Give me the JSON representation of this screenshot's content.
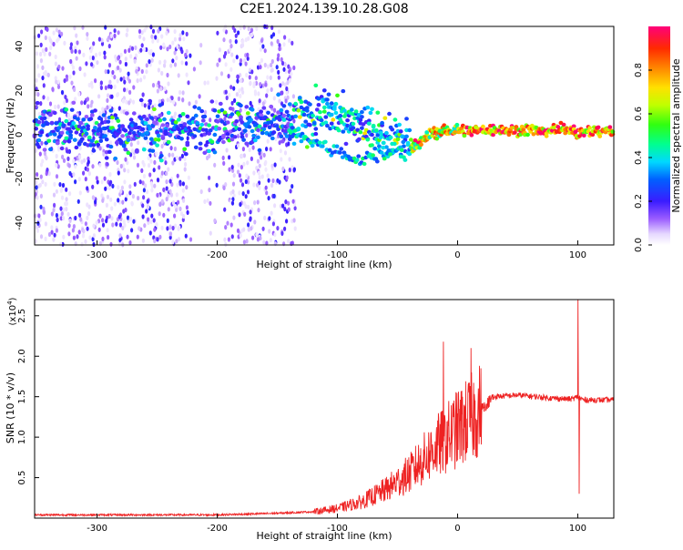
{
  "title": "C2E1.2024.139.10.28.G08",
  "chart_data": [
    {
      "type": "heatmap",
      "xlabel": "Height of straight line (km)",
      "ylabel": "Frequency (Hz)",
      "xlim": [
        -352,
        130
      ],
      "ylim": [
        -50,
        49
      ],
      "x_ticks": [
        -300,
        -200,
        -100,
        0,
        100
      ],
      "y_ticks": [
        -40,
        -20,
        0,
        20,
        40
      ],
      "colorbar": {
        "label": "Normalized spectral amplitude",
        "range": [
          0.0,
          1.0
        ],
        "ticks": [
          0.0,
          0.2,
          0.4,
          0.6,
          0.8
        ]
      },
      "ridge": {
        "x": [
          -352,
          -300,
          -250,
          -200,
          -180,
          -140,
          -120,
          -100,
          -80,
          -60,
          -45,
          -35,
          -20,
          0,
          20,
          50,
          80,
          95,
          100,
          130
        ],
        "y": [
          3,
          2,
          2,
          3,
          6,
          4,
          8,
          10,
          5,
          0,
          -3,
          -5,
          1,
          2,
          2,
          2,
          2,
          3,
          1,
          2
        ]
      },
      "ridge_lower": {
        "x": [
          -140,
          -120,
          -100,
          -80,
          -60,
          -45
        ],
        "y": [
          1,
          -3,
          -8,
          -12,
          -8,
          -4
        ]
      }
    },
    {
      "type": "line",
      "xlabel": "Height of straight line (km)",
      "ylabel": "SNR (10 * v/v)",
      "yscale_label": "(x10",
      "yscale_exp": "4",
      "yscale_close": ")",
      "xlim": [
        -352,
        130
      ],
      "ylim": [
        0.0,
        2.7
      ],
      "x_ticks": [
        -300,
        -200,
        -100,
        0,
        100
      ],
      "y_ticks": [
        0.5,
        1.0,
        1.5,
        2.0,
        2.5
      ],
      "series_color": "#ee2222",
      "envelope": {
        "x": [
          -352,
          -200,
          -150,
          -120,
          -100,
          -80,
          -60,
          -40,
          -20,
          0,
          20,
          30,
          50,
          80,
          95,
          100,
          105,
          130
        ],
        "y": [
          0.04,
          0.04,
          0.06,
          0.08,
          0.12,
          0.2,
          0.35,
          0.55,
          0.85,
          1.1,
          1.35,
          1.5,
          1.52,
          1.48,
          1.47,
          1.5,
          1.46,
          1.46
        ]
      },
      "spikes": [
        {
          "x": -12,
          "y": 2.18
        },
        {
          "x": 11,
          "y": 2.1
        },
        {
          "x": 100,
          "y": 2.7
        },
        {
          "x": 101,
          "y": 0.3
        }
      ]
    }
  ]
}
